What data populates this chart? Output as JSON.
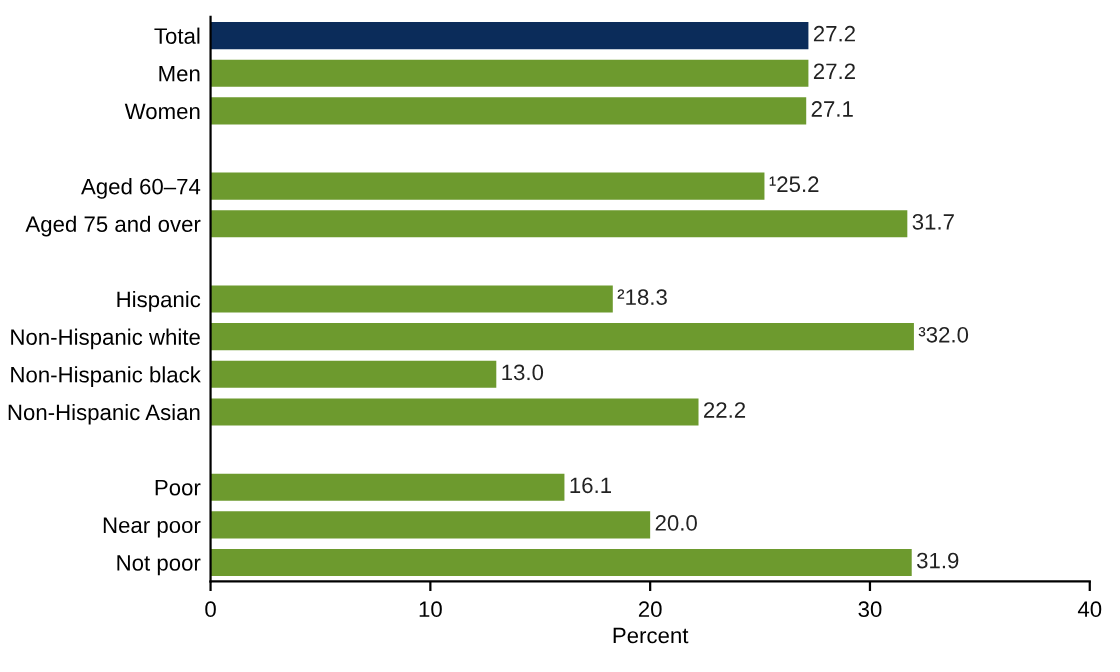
{
  "chart_data": {
    "type": "bar",
    "orientation": "horizontal",
    "categories": [
      "Total",
      "Men",
      "Women",
      null,
      "Aged 60–74",
      "Aged 75 and over",
      null,
      "Hispanic",
      "Non-Hispanic white",
      "Non-Hispanic black",
      "Non-Hispanic Asian",
      null,
      "Poor",
      "Near poor",
      "Not poor"
    ],
    "values": [
      27.2,
      27.2,
      27.1,
      null,
      25.2,
      31.7,
      null,
      18.3,
      32.0,
      13.0,
      22.2,
      null,
      16.1,
      20.0,
      31.9
    ],
    "colors": [
      "#0b2c5a",
      "#6d9a2e",
      "#6d9a2e",
      null,
      "#6d9a2e",
      "#6d9a2e",
      null,
      "#6d9a2e",
      "#6d9a2e",
      "#6d9a2e",
      "#6d9a2e",
      null,
      "#6d9a2e",
      "#6d9a2e",
      "#6d9a2e"
    ],
    "value_labels": [
      "27.2",
      "27.2",
      "27.1",
      null,
      "¹25.2",
      "31.7",
      null,
      "²18.3",
      "³32.0",
      "13.0",
      "22.2",
      null,
      "16.1",
      "20.0",
      "31.9"
    ],
    "xlabel": "Percent",
    "xlim": [
      0,
      40
    ],
    "xticks": [
      0,
      10,
      20,
      30,
      40
    ],
    "grid": false,
    "legend": false
  }
}
